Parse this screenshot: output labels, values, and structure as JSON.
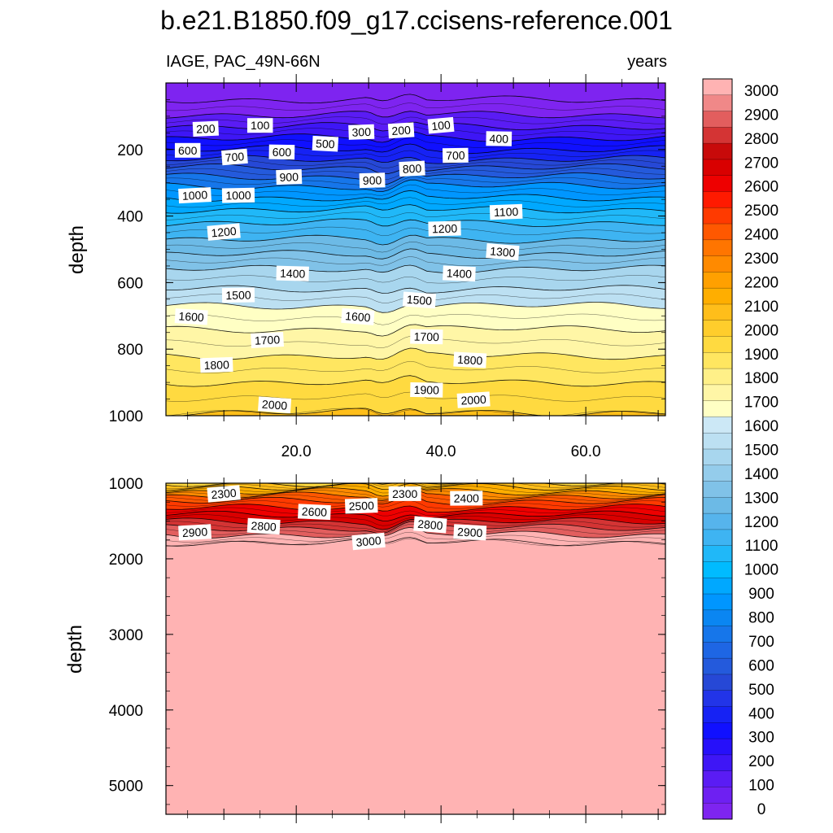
{
  "chart_data": [
    {
      "type": "contour",
      "title": "b.e21.B1850.f09_g17.ccisens-reference.001",
      "left_label": "IAGE, PAC_49N-66N",
      "right_label": "years",
      "ylabel": "depth",
      "xlim": [
        2,
        71
      ],
      "ylim": [
        1000,
        0
      ],
      "x_ticks": [
        20,
        40,
        60
      ],
      "x_tick_labels": [
        "20.0",
        "40.0",
        "60.0"
      ],
      "y_ticks": [
        200,
        400,
        600,
        800,
        1000
      ],
      "y_tick_labels": [
        "200",
        "400",
        "600",
        "800",
        "1000"
      ],
      "contour_levels": [
        0,
        100,
        200,
        300,
        400,
        500,
        600,
        700,
        800,
        900,
        1000,
        1100,
        1200,
        1300,
        1400,
        1500,
        1600,
        1700,
        1800,
        1900,
        2000
      ],
      "level_depths": [
        50,
        95,
        130,
        165,
        200,
        230,
        255,
        282,
        310,
        345,
        380,
        420,
        470,
        515,
        560,
        620,
        670,
        740,
        820,
        900,
        990
      ],
      "contour_labels": [
        {
          "text": "200",
          "x": 7.5,
          "depth": 140
        },
        {
          "text": "100",
          "x": 15,
          "depth": 130
        },
        {
          "text": "300",
          "x": 29,
          "depth": 150
        },
        {
          "text": "200",
          "x": 34.5,
          "depth": 145
        },
        {
          "text": "100",
          "x": 40,
          "depth": 130
        },
        {
          "text": "400",
          "x": 48,
          "depth": 170
        },
        {
          "text": "600",
          "x": 5,
          "depth": 205
        },
        {
          "text": "700",
          "x": 11.5,
          "depth": 225
        },
        {
          "text": "600",
          "x": 18,
          "depth": 210
        },
        {
          "text": "500",
          "x": 24,
          "depth": 185
        },
        {
          "text": "700",
          "x": 42,
          "depth": 220
        },
        {
          "text": "800",
          "x": 36,
          "depth": 260
        },
        {
          "text": "900",
          "x": 19,
          "depth": 285
        },
        {
          "text": "900",
          "x": 30.5,
          "depth": 295
        },
        {
          "text": "1000",
          "x": 6,
          "depth": 340
        },
        {
          "text": "1000",
          "x": 12,
          "depth": 340
        },
        {
          "text": "1100",
          "x": 49,
          "depth": 390
        },
        {
          "text": "1200",
          "x": 10,
          "depth": 450
        },
        {
          "text": "1200",
          "x": 40.5,
          "depth": 440
        },
        {
          "text": "1300",
          "x": 48.5,
          "depth": 510
        },
        {
          "text": "1400",
          "x": 19.5,
          "depth": 575
        },
        {
          "text": "1400",
          "x": 42.5,
          "depth": 575
        },
        {
          "text": "1500",
          "x": 12,
          "depth": 640
        },
        {
          "text": "1500",
          "x": 37,
          "depth": 655
        },
        {
          "text": "1600",
          "x": 5.5,
          "depth": 705
        },
        {
          "text": "1600",
          "x": 28.5,
          "depth": 705
        },
        {
          "text": "1700",
          "x": 16,
          "depth": 775
        },
        {
          "text": "1700",
          "x": 38,
          "depth": 765
        },
        {
          "text": "1800",
          "x": 9,
          "depth": 850
        },
        {
          "text": "1800",
          "x": 44,
          "depth": 835
        },
        {
          "text": "1900",
          "x": 38,
          "depth": 925
        },
        {
          "text": "2000",
          "x": 17,
          "depth": 970
        },
        {
          "text": "2000",
          "x": 44.5,
          "depth": 955
        }
      ]
    },
    {
      "type": "contour",
      "ylabel": "depth",
      "xlim": [
        2,
        71
      ],
      "ylim": [
        5380,
        1000
      ],
      "x_ticks": [
        20,
        40,
        60
      ],
      "y_ticks": [
        1000,
        2000,
        3000,
        4000,
        5000
      ],
      "y_tick_labels": [
        "1000",
        "2000",
        "3000",
        "4000",
        "5000"
      ],
      "contour_levels": [
        2000,
        2100,
        2200,
        2300,
        2400,
        2500,
        2600,
        2700,
        2800,
        2900,
        3000
      ],
      "level_depths": [
        1000,
        1050,
        1110,
        1170,
        1240,
        1330,
        1420,
        1510,
        1590,
        1680,
        1780
      ],
      "contour_labels": [
        {
          "text": "2300",
          "x": 10,
          "depth": 1150
        },
        {
          "text": "2300",
          "x": 35,
          "depth": 1150
        },
        {
          "text": "2400",
          "x": 43.5,
          "depth": 1210
        },
        {
          "text": "2500",
          "x": 29,
          "depth": 1310
        },
        {
          "text": "2600",
          "x": 22.5,
          "depth": 1390
        },
        {
          "text": "2800",
          "x": 15.5,
          "depth": 1580
        },
        {
          "text": "2800",
          "x": 38.5,
          "depth": 1560
        },
        {
          "text": "2900",
          "x": 6,
          "depth": 1660
        },
        {
          "text": "2900",
          "x": 44,
          "depth": 1660
        },
        {
          "text": "3000",
          "x": 30,
          "depth": 1780
        }
      ]
    }
  ],
  "colorbar": {
    "labels": [
      "3000",
      "2900",
      "2800",
      "2700",
      "2600",
      "2500",
      "2400",
      "2300",
      "2200",
      "2100",
      "2000",
      "1900",
      "1800",
      "1700",
      "1600",
      "1500",
      "1400",
      "1300",
      "1200",
      "1100",
      "1000",
      "900",
      "800",
      "700",
      "600",
      "500",
      "400",
      "300",
      "200",
      "100",
      "0"
    ],
    "colors": [
      "#FFB3B3",
      "#F08888",
      "#E25E5E",
      "#D43434",
      "#C80A0A",
      "#D90000",
      "#EE0000",
      "#FF1A00",
      "#FF3A00",
      "#FF5800",
      "#FF7500",
      "#FF8A00",
      "#FFA000",
      "#FFAE00",
      "#FFBE1A",
      "#FFCD2C",
      "#FFDA40",
      "#FFE660",
      "#FFF088",
      "#FFF6A6",
      "#FFFFC4",
      "#CCE8F6",
      "#BCE0F2",
      "#A8D6EE",
      "#94CCEB",
      "#80C2E8",
      "#6CBAE6",
      "#56B4EC",
      "#3EB4F2",
      "#20B8F8",
      "#00BBFF",
      "#00A8FF",
      "#0096FF",
      "#0A86F2",
      "#1676EA",
      "#1E66E4",
      "#245ADC",
      "#2648D6",
      "#2234E8",
      "#1622F4",
      "#1010FF",
      "#2610FA",
      "#3E16F6",
      "#5A1CF4",
      "#6E20F2",
      "#7E24F0"
    ]
  }
}
